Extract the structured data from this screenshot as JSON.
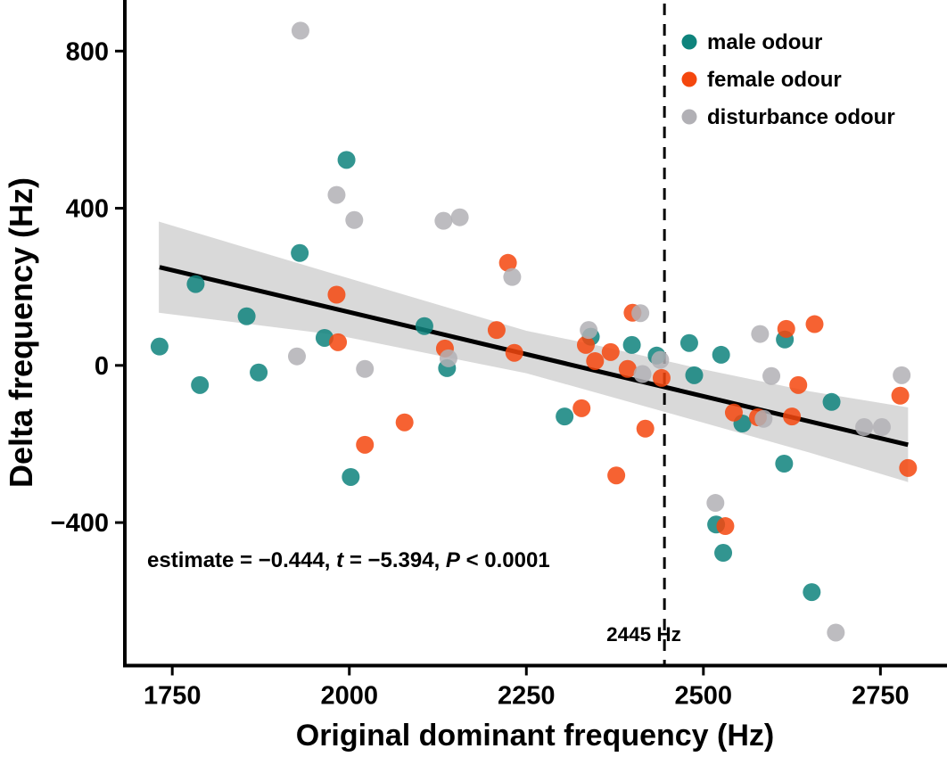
{
  "figure": {
    "xlabel": "Original dominant frequency (Hz)",
    "ylabel": "Delta frequency (Hz)"
  },
  "legend": {
    "items": [
      {
        "name": "male odour",
        "color": "#0e837c"
      },
      {
        "name": "female odour",
        "color": "#f4470e"
      },
      {
        "name": "disturbance odour",
        "color": "#b1b0b5"
      }
    ]
  },
  "annotation": {
    "part1": "estimate = −0.444, ",
    "t_symbol": "t",
    "part2": " = −5.394, ",
    "p_symbol": "P",
    "part3": " < 0.0001"
  },
  "vline": {
    "x": 2445,
    "label": "2445 Hz"
  },
  "styles": {
    "band_color": "#d9d9d9",
    "regression_color": "#000000",
    "axis_color": "#000000",
    "point_opacity": 0.85
  },
  "chart_data": {
    "type": "scatter",
    "title": "",
    "xlabel": "Original dominant frequency (Hz)",
    "ylabel": "Delta frequency (Hz)",
    "xlim": [
      1683,
      2844
    ],
    "ylim": [
      -764,
      930
    ],
    "xticks": [
      1750,
      2000,
      2250,
      2500,
      2750
    ],
    "yticks": [
      800,
      400,
      0,
      -400
    ],
    "grid": false,
    "legend_position": "top-right",
    "series": [
      {
        "name": "male odour",
        "color": "#0e837c",
        "points": [
          [
            1732,
            48
          ],
          [
            1783,
            207
          ],
          [
            1789,
            -50
          ],
          [
            1855,
            125
          ],
          [
            1872,
            -18
          ],
          [
            1930,
            286
          ],
          [
            1965,
            70
          ],
          [
            1996,
            523
          ],
          [
            2002,
            -284
          ],
          [
            2106,
            100
          ],
          [
            2138,
            -7
          ],
          [
            2304,
            -130
          ],
          [
            2341,
            73
          ],
          [
            2399,
            52
          ],
          [
            2434,
            25
          ],
          [
            2480,
            57
          ],
          [
            2487,
            -25
          ],
          [
            2518,
            -405
          ],
          [
            2525,
            27
          ],
          [
            2528,
            -477
          ],
          [
            2555,
            -148
          ],
          [
            2614,
            -250
          ],
          [
            2615,
            66
          ],
          [
            2653,
            -577
          ],
          [
            2681,
            -93
          ]
        ]
      },
      {
        "name": "female odour",
        "color": "#f4470e",
        "points": [
          [
            1982,
            180
          ],
          [
            1984,
            59
          ],
          [
            2022,
            -202
          ],
          [
            2078,
            -145
          ],
          [
            2135,
            43
          ],
          [
            2208,
            90
          ],
          [
            2224,
            261
          ],
          [
            2233,
            32
          ],
          [
            2328,
            -109
          ],
          [
            2334,
            52
          ],
          [
            2347,
            11
          ],
          [
            2369,
            34
          ],
          [
            2377,
            -280
          ],
          [
            2393,
            -9
          ],
          [
            2400,
            134
          ],
          [
            2418,
            -161
          ],
          [
            2441,
            -32
          ],
          [
            2531,
            -409
          ],
          [
            2543,
            -120
          ],
          [
            2577,
            -132
          ],
          [
            2617,
            93
          ],
          [
            2625,
            -130
          ],
          [
            2634,
            -50
          ],
          [
            2657,
            105
          ],
          [
            2778,
            -77
          ],
          [
            2789,
            -261
          ]
        ]
      },
      {
        "name": "disturbance odour",
        "color": "#b1b0b5",
        "points": [
          [
            1926,
            23
          ],
          [
            1931,
            852
          ],
          [
            1982,
            434
          ],
          [
            2007,
            370
          ],
          [
            2022,
            -9
          ],
          [
            2133,
            368
          ],
          [
            2140,
            18
          ],
          [
            2156,
            377
          ],
          [
            2230,
            225
          ],
          [
            2338,
            90
          ],
          [
            2411,
            133
          ],
          [
            2414,
            -22
          ],
          [
            2439,
            14
          ],
          [
            2517,
            -350
          ],
          [
            2580,
            80
          ],
          [
            2585,
            -136
          ],
          [
            2596,
            -27
          ],
          [
            2687,
            -680
          ],
          [
            2727,
            -157
          ],
          [
            2752,
            -157
          ],
          [
            2780,
            -25
          ]
        ]
      }
    ],
    "regression": {
      "estimate": -0.444,
      "t": -5.394,
      "p": "< 0.0001",
      "x": [
        1732,
        2789
      ],
      "y": [
        250,
        -202
      ]
    },
    "ci_band": {
      "x": [
        1731,
        1980,
        2250,
        2340,
        2500,
        2650,
        2789
      ],
      "upper": [
        366,
        232,
        88,
        55,
        -10,
        -66,
        -107
      ],
      "lower": [
        134,
        78,
        -20,
        -65,
        -146,
        -222,
        -297
      ]
    },
    "vline_x": 2445
  }
}
